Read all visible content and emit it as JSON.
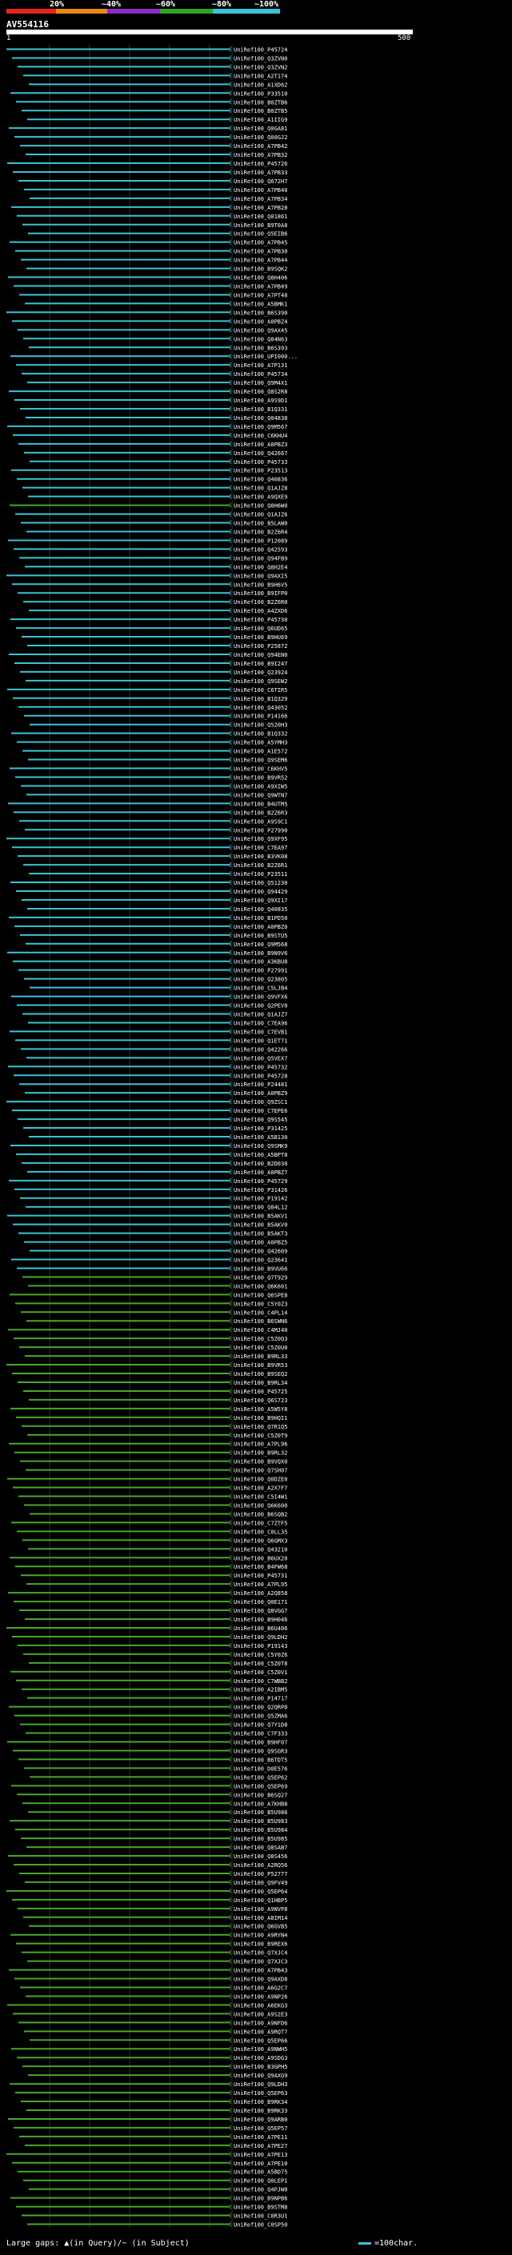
{
  "header": {
    "scale_labels": [
      "20%",
      "~40%",
      "~60%",
      "~80%",
      "~100%"
    ],
    "scale_colors": [
      "#e3271a",
      "#e88a16",
      "#8c2ec3",
      "#2fa22b",
      "#37c4d6"
    ],
    "query_name": "AV554116",
    "query_start": "1",
    "query_end": "500"
  },
  "colors": {
    "cyan": "#37c4d6",
    "green": "#46a82a",
    "background": "#000000",
    "grid": "#2f2f2f"
  },
  "hits": [
    {
      "id": "UniRef100_P45724",
      "color": "cyan"
    },
    {
      "id": "UniRef100_Q3ZVN0",
      "color": "cyan"
    },
    {
      "id": "UniRef100_Q3ZVN2",
      "color": "cyan"
    },
    {
      "id": "UniRef100_A2T174",
      "color": "cyan"
    },
    {
      "id": "UniRef100_A1XD62",
      "color": "cyan"
    },
    {
      "id": "UniRef100_P33510",
      "color": "cyan"
    },
    {
      "id": "UniRef100_B0ZTB6",
      "color": "cyan"
    },
    {
      "id": "UniRef100_B0ZTB5",
      "color": "cyan"
    },
    {
      "id": "UniRef100_A1IIG9",
      "color": "cyan"
    },
    {
      "id": "UniRef100_Q0GA81",
      "color": "cyan"
    },
    {
      "id": "UniRef100_Q00GJ2",
      "color": "cyan"
    },
    {
      "id": "UniRef100_A7PB42",
      "color": "cyan"
    },
    {
      "id": "UniRef100_A7PB32",
      "color": "cyan"
    },
    {
      "id": "UniRef100_P45726",
      "color": "cyan"
    },
    {
      "id": "UniRef100_A7PB33",
      "color": "cyan"
    },
    {
      "id": "UniRef100_Q672H7",
      "color": "cyan"
    },
    {
      "id": "UniRef100_A7PB40",
      "color": "cyan"
    },
    {
      "id": "UniRef100_A7PB34",
      "color": "cyan"
    },
    {
      "id": "UniRef100_A7PB28",
      "color": "cyan"
    },
    {
      "id": "UniRef100_Q01861",
      "color": "cyan"
    },
    {
      "id": "UniRef100_B9T0A8",
      "color": "cyan"
    },
    {
      "id": "UniRef100_Q5EIB6",
      "color": "cyan"
    },
    {
      "id": "UniRef100_A7PB45",
      "color": "cyan"
    },
    {
      "id": "UniRef100_A7PB30",
      "color": "cyan"
    },
    {
      "id": "UniRef100_A7PB44",
      "color": "cyan"
    },
    {
      "id": "UniRef100_B9SQK2",
      "color": "cyan"
    },
    {
      "id": "UniRef100_Q8H406",
      "color": "cyan"
    },
    {
      "id": "UniRef100_A7PB49",
      "color": "cyan"
    },
    {
      "id": "UniRef100_A7PT48",
      "color": "cyan"
    },
    {
      "id": "UniRef100_A5BMK1",
      "color": "cyan"
    },
    {
      "id": "UniRef100_B6S390",
      "color": "cyan"
    },
    {
      "id": "UniRef100_A0PBZ4",
      "color": "cyan"
    },
    {
      "id": "UniRef100_Q9AX45",
      "color": "cyan"
    },
    {
      "id": "UniRef100_Q84N63",
      "color": "cyan"
    },
    {
      "id": "UniRef100_B6S393",
      "color": "cyan"
    },
    {
      "id": "UniRef100_UPI000...",
      "color": "cyan"
    },
    {
      "id": "UniRef100_A7P131",
      "color": "cyan"
    },
    {
      "id": "UniRef100_P45734",
      "color": "cyan"
    },
    {
      "id": "UniRef100_Q9M4X1",
      "color": "cyan"
    },
    {
      "id": "UniRef100_Q8S2R8",
      "color": "cyan"
    },
    {
      "id": "UniRef100_A9S9D1",
      "color": "cyan"
    },
    {
      "id": "UniRef100_B1Q331",
      "color": "cyan"
    },
    {
      "id": "UniRef100_Q04838",
      "color": "cyan"
    },
    {
      "id": "UniRef100_Q9M567",
      "color": "cyan"
    },
    {
      "id": "UniRef100_C6KHU4",
      "color": "cyan"
    },
    {
      "id": "UniRef100_A0PBZ3",
      "color": "cyan"
    },
    {
      "id": "UniRef100_Q42667",
      "color": "cyan"
    },
    {
      "id": "UniRef100_P45733",
      "color": "cyan"
    },
    {
      "id": "UniRef100_P23513",
      "color": "cyan"
    },
    {
      "id": "UniRef100_Q40836",
      "color": "cyan"
    },
    {
      "id": "UniRef100_Q1AJZ8",
      "color": "cyan"
    },
    {
      "id": "UniRef100_A9QXE9",
      "color": "cyan"
    },
    {
      "id": "UniRef100_Q8H6W0",
      "color": "green"
    },
    {
      "id": "UniRef100_Q1AJZ6",
      "color": "cyan"
    },
    {
      "id": "UniRef100_B5LAW0",
      "color": "cyan"
    },
    {
      "id": "UniRef100_B2Z6R4",
      "color": "cyan"
    },
    {
      "id": "UniRef100_P12089",
      "color": "cyan"
    },
    {
      "id": "UniRef100_Q42593",
      "color": "cyan"
    },
    {
      "id": "UniRef100_Q94FB9",
      "color": "cyan"
    },
    {
      "id": "UniRef100_Q8H2E4",
      "color": "cyan"
    },
    {
      "id": "UniRef100_Q9AXI5",
      "color": "cyan"
    },
    {
      "id": "UniRef100_B9H6V5",
      "color": "cyan"
    },
    {
      "id": "UniRef100_B9IFP0",
      "color": "cyan"
    },
    {
      "id": "UniRef100_B2Z6R0",
      "color": "cyan"
    },
    {
      "id": "UniRef100_A4ZXD6",
      "color": "cyan"
    },
    {
      "id": "UniRef100_P45730",
      "color": "cyan"
    },
    {
      "id": "UniRef100_Q6UD65",
      "color": "cyan"
    },
    {
      "id": "UniRef100_B9HU69",
      "color": "cyan"
    },
    {
      "id": "UniRef100_P25872",
      "color": "cyan"
    },
    {
      "id": "UniRef100_Q94EN0",
      "color": "cyan"
    },
    {
      "id": "UniRef100_B9I247",
      "color": "cyan"
    },
    {
      "id": "UniRef100_Q23924",
      "color": "cyan"
    },
    {
      "id": "UniRef100_Q9SEW2",
      "color": "cyan"
    },
    {
      "id": "UniRef100_C6TIR5",
      "color": "cyan"
    },
    {
      "id": "UniRef100_B1Q329",
      "color": "cyan"
    },
    {
      "id": "UniRef100_Q43052",
      "color": "cyan"
    },
    {
      "id": "UniRef100_P14166",
      "color": "cyan"
    },
    {
      "id": "UniRef100_Q520H3",
      "color": "cyan"
    },
    {
      "id": "UniRef100_B1Q332",
      "color": "cyan"
    },
    {
      "id": "UniRef100_A5YMH3",
      "color": "cyan"
    },
    {
      "id": "UniRef100_A1E572",
      "color": "cyan"
    },
    {
      "id": "UniRef100_Q9SEM6",
      "color": "cyan"
    },
    {
      "id": "UniRef100_C6KHV5",
      "color": "cyan"
    },
    {
      "id": "UniRef100_B9VR52",
      "color": "cyan"
    },
    {
      "id": "UniRef100_A9XIW5",
      "color": "cyan"
    },
    {
      "id": "UniRef100_Q9WTN7",
      "color": "cyan"
    },
    {
      "id": "UniRef100_B4UTM5",
      "color": "cyan"
    },
    {
      "id": "UniRef100_B2Z6R3",
      "color": "cyan"
    },
    {
      "id": "UniRef100_A9S9C1",
      "color": "cyan"
    },
    {
      "id": "UniRef100_P27990",
      "color": "cyan"
    },
    {
      "id": "UniRef100_Q9XF95",
      "color": "cyan"
    },
    {
      "id": "UniRef100_C7EA97",
      "color": "cyan"
    },
    {
      "id": "UniRef100_B3VK08",
      "color": "cyan"
    },
    {
      "id": "UniRef100_B2Z6R1",
      "color": "cyan"
    },
    {
      "id": "UniRef100_P23511",
      "color": "cyan"
    },
    {
      "id": "UniRef100_Q51230",
      "color": "cyan"
    },
    {
      "id": "UniRef100_Q94429",
      "color": "cyan"
    },
    {
      "id": "UniRef100_Q9XI17",
      "color": "cyan"
    },
    {
      "id": "UniRef100_Q40835",
      "color": "cyan"
    },
    {
      "id": "UniRef100_B1PD50",
      "color": "cyan"
    },
    {
      "id": "UniRef100_A0PBZ0",
      "color": "cyan"
    },
    {
      "id": "UniRef100_B9STU5",
      "color": "cyan"
    },
    {
      "id": "UniRef100_Q9M568",
      "color": "cyan"
    },
    {
      "id": "UniRef100_B9N9V6",
      "color": "cyan"
    },
    {
      "id": "UniRef100_A3KBU8",
      "color": "cyan"
    },
    {
      "id": "UniRef100_P27991",
      "color": "cyan"
    },
    {
      "id": "UniRef100_Q23805",
      "color": "cyan"
    },
    {
      "id": "UniRef100_C5LJB4",
      "color": "cyan"
    },
    {
      "id": "UniRef100_Q9VFX6",
      "color": "cyan"
    },
    {
      "id": "UniRef100_Q2PEV0",
      "color": "cyan"
    },
    {
      "id": "UniRef100_Q1AJZ7",
      "color": "cyan"
    },
    {
      "id": "UniRef100_C7EA96",
      "color": "cyan"
    },
    {
      "id": "UniRef100_C7EVB1",
      "color": "cyan"
    },
    {
      "id": "UniRef100_Q1ET71",
      "color": "cyan"
    },
    {
      "id": "UniRef100_Q42266",
      "color": "cyan"
    },
    {
      "id": "UniRef100_Q5VEX7",
      "color": "cyan"
    },
    {
      "id": "UniRef100_P45732",
      "color": "cyan"
    },
    {
      "id": "UniRef100_P45728",
      "color": "cyan"
    },
    {
      "id": "UniRef100_P24481",
      "color": "cyan"
    },
    {
      "id": "UniRef100_A0PBZ9",
      "color": "cyan"
    },
    {
      "id": "UniRef100_Q9ZSC1",
      "color": "cyan"
    },
    {
      "id": "UniRef100_C7EPE6",
      "color": "cyan"
    },
    {
      "id": "UniRef100_Q9S545",
      "color": "cyan"
    },
    {
      "id": "UniRef100_P31425",
      "color": "cyan"
    },
    {
      "id": "UniRef100_A5B130",
      "color": "cyan"
    },
    {
      "id": "UniRef100_Q9SMK9",
      "color": "cyan"
    },
    {
      "id": "UniRef100_A5BPT8",
      "color": "cyan"
    },
    {
      "id": "UniRef100_B2D030",
      "color": "cyan"
    },
    {
      "id": "UniRef100_A0PBZ7",
      "color": "cyan"
    },
    {
      "id": "UniRef100_P45729",
      "color": "cyan"
    },
    {
      "id": "UniRef100_P31426",
      "color": "cyan"
    },
    {
      "id": "UniRef100_P19142",
      "color": "cyan"
    },
    {
      "id": "UniRef100_Q84L12",
      "color": "cyan"
    },
    {
      "id": "UniRef100_B5AKV1",
      "color": "cyan"
    },
    {
      "id": "UniRef100_B5AKV0",
      "color": "cyan"
    },
    {
      "id": "UniRef100_B5AKT3",
      "color": "cyan"
    },
    {
      "id": "UniRef100_A0PBZ5",
      "color": "cyan"
    },
    {
      "id": "UniRef100_Q42609",
      "color": "cyan"
    },
    {
      "id": "UniRef100_Q23641",
      "color": "cyan"
    },
    {
      "id": "UniRef100_B9VU66",
      "color": "cyan"
    },
    {
      "id": "UniRef100_Q7T929",
      "color": "green"
    },
    {
      "id": "UniRef100_Q6K601",
      "color": "green"
    },
    {
      "id": "UniRef100_Q6SPE8",
      "color": "green"
    },
    {
      "id": "UniRef100_C5Y0Z3",
      "color": "green"
    },
    {
      "id": "UniRef100_C4PL14",
      "color": "green"
    },
    {
      "id": "UniRef100_B6SWN6",
      "color": "green"
    },
    {
      "id": "UniRef100_C4MJ40",
      "color": "green"
    },
    {
      "id": "UniRef100_C5Z0Q3",
      "color": "green"
    },
    {
      "id": "UniRef100_C5Z0U0",
      "color": "green"
    },
    {
      "id": "UniRef100_B9RL33",
      "color": "green"
    },
    {
      "id": "UniRef100_B9VR53",
      "color": "green"
    },
    {
      "id": "UniRef100_B9SEQ2",
      "color": "green"
    },
    {
      "id": "UniRef100_B9RL34",
      "color": "green"
    },
    {
      "id": "UniRef100_P45725",
      "color": "green"
    },
    {
      "id": "UniRef100_Q6S723",
      "color": "green"
    },
    {
      "id": "UniRef100_A5W5Y8",
      "color": "green"
    },
    {
      "id": "UniRef100_B9HQI1",
      "color": "green"
    },
    {
      "id": "UniRef100_Q7R1Q5",
      "color": "green"
    },
    {
      "id": "UniRef100_C5Z0T9",
      "color": "green"
    },
    {
      "id": "UniRef100_A7PL96",
      "color": "green"
    },
    {
      "id": "UniRef100_B9RL32",
      "color": "green"
    },
    {
      "id": "UniRef100_B9VQX0",
      "color": "green"
    },
    {
      "id": "UniRef100_Q7SH07",
      "color": "green"
    },
    {
      "id": "UniRef100_Q0DZE0",
      "color": "green"
    },
    {
      "id": "UniRef100_A2X7F7",
      "color": "green"
    },
    {
      "id": "UniRef100_C5I4W1",
      "color": "green"
    },
    {
      "id": "UniRef100_Q6K600",
      "color": "green"
    },
    {
      "id": "UniRef100_B6SQB2",
      "color": "green"
    },
    {
      "id": "UniRef100_C7ZTF5",
      "color": "green"
    },
    {
      "id": "UniRef100_C0LL35",
      "color": "green"
    },
    {
      "id": "UniRef100_Q6GMX3",
      "color": "green"
    },
    {
      "id": "UniRef100_Q43210",
      "color": "green"
    },
    {
      "id": "UniRef100_B6UX20",
      "color": "green"
    },
    {
      "id": "UniRef100_B4FW68",
      "color": "green"
    },
    {
      "id": "UniRef100_P45731",
      "color": "green"
    },
    {
      "id": "UniRef100_A7PL95",
      "color": "green"
    },
    {
      "id": "UniRef100_A2Q858",
      "color": "green"
    },
    {
      "id": "UniRef100_Q0E171",
      "color": "green"
    },
    {
      "id": "UniRef100_Q8VGG7",
      "color": "green"
    },
    {
      "id": "UniRef100_B9H046",
      "color": "green"
    },
    {
      "id": "UniRef100_B6U406",
      "color": "green"
    },
    {
      "id": "UniRef100_Q9LDH2",
      "color": "green"
    },
    {
      "id": "UniRef100_P19143",
      "color": "green"
    },
    {
      "id": "UniRef100_C5Y0Z6",
      "color": "green"
    },
    {
      "id": "UniRef100_C5Z0T8",
      "color": "green"
    },
    {
      "id": "UniRef100_C5Z0V1",
      "color": "green"
    },
    {
      "id": "UniRef100_C7WBB2",
      "color": "green"
    },
    {
      "id": "UniRef100_A2IBM5",
      "color": "green"
    },
    {
      "id": "UniRef100_P14717",
      "color": "green"
    },
    {
      "id": "UniRef100_Q2QRP0",
      "color": "green"
    },
    {
      "id": "UniRef100_Q5ZMA6",
      "color": "green"
    },
    {
      "id": "UniRef100_Q7Y1D8",
      "color": "green"
    },
    {
      "id": "UniRef100_C7F333",
      "color": "green"
    },
    {
      "id": "UniRef100_B9HF07",
      "color": "green"
    },
    {
      "id": "UniRef100_Q9SGR3",
      "color": "green"
    },
    {
      "id": "UniRef100_B6TDT5",
      "color": "green"
    },
    {
      "id": "UniRef100_D0E576",
      "color": "green"
    },
    {
      "id": "UniRef100_Q5EP62",
      "color": "green"
    },
    {
      "id": "UniRef100_Q5EP69",
      "color": "green"
    },
    {
      "id": "UniRef100_B6SQ27",
      "color": "green"
    },
    {
      "id": "UniRef100_A7KHB8",
      "color": "green"
    },
    {
      "id": "UniRef100_B5U986",
      "color": "green"
    },
    {
      "id": "UniRef100_B5U983",
      "color": "green"
    },
    {
      "id": "UniRef100_B5U984",
      "color": "green"
    },
    {
      "id": "UniRef100_B5U985",
      "color": "green"
    },
    {
      "id": "UniRef100_Q8SAB7",
      "color": "green"
    },
    {
      "id": "UniRef100_Q8S456",
      "color": "green"
    },
    {
      "id": "UniRef100_A2RQ56",
      "color": "green"
    },
    {
      "id": "UniRef100_P52777",
      "color": "green"
    },
    {
      "id": "UniRef100_Q9FV49",
      "color": "green"
    },
    {
      "id": "UniRef100_Q5EP64",
      "color": "green"
    },
    {
      "id": "UniRef100_Q1HBP5",
      "color": "green"
    },
    {
      "id": "UniRef100_A9NVP8",
      "color": "green"
    },
    {
      "id": "UniRef100_A8IM14",
      "color": "green"
    },
    {
      "id": "UniRef100_Q6GVB5",
      "color": "green"
    },
    {
      "id": "UniRef100_A9RYN4",
      "color": "green"
    },
    {
      "id": "UniRef100_B9REX6",
      "color": "green"
    },
    {
      "id": "UniRef100_Q7XJC4",
      "color": "green"
    },
    {
      "id": "UniRef100_Q7XJC3",
      "color": "green"
    },
    {
      "id": "UniRef100_A7PB43",
      "color": "green"
    },
    {
      "id": "UniRef100_Q9AXD8",
      "color": "green"
    },
    {
      "id": "UniRef100_A6G2C7",
      "color": "green"
    },
    {
      "id": "UniRef100_A9NP26",
      "color": "green"
    },
    {
      "id": "UniRef100_A6EKG3",
      "color": "green"
    },
    {
      "id": "UniRef100_A9S2E3",
      "color": "green"
    },
    {
      "id": "UniRef100_A9NFD6",
      "color": "green"
    },
    {
      "id": "UniRef100_A9RQT7",
      "color": "green"
    },
    {
      "id": "UniRef100_Q5EP66",
      "color": "green"
    },
    {
      "id": "UniRef100_A9NWH5",
      "color": "green"
    },
    {
      "id": "UniRef100_A9SDG3",
      "color": "green"
    },
    {
      "id": "UniRef100_B3GPH5",
      "color": "green"
    },
    {
      "id": "UniRef100_Q9AXG9",
      "color": "green"
    },
    {
      "id": "UniRef100_Q9LDH3",
      "color": "green"
    },
    {
      "id": "UniRef100_Q5EP63",
      "color": "green"
    },
    {
      "id": "UniRef100_B9RK34",
      "color": "green"
    },
    {
      "id": "UniRef100_B9RK33",
      "color": "green"
    },
    {
      "id": "UniRef100_Q9ARB0",
      "color": "green"
    },
    {
      "id": "UniRef100_Q5EP57",
      "color": "green"
    },
    {
      "id": "UniRef100_A7PE11",
      "color": "green"
    },
    {
      "id": "UniRef100_A7PE27",
      "color": "green"
    },
    {
      "id": "UniRef100_A7PE13",
      "color": "green"
    },
    {
      "id": "UniRef100_A7PE10",
      "color": "green"
    },
    {
      "id": "UniRef100_A5BD75",
      "color": "green"
    },
    {
      "id": "UniRef100_Q0LEP1",
      "color": "green"
    },
    {
      "id": "UniRef100_Q4PJW0",
      "color": "green"
    },
    {
      "id": "UniRef100_B9NPB6",
      "color": "green"
    },
    {
      "id": "UniRef100_B9STM8",
      "color": "green"
    },
    {
      "id": "UniRef100_C0R3U1",
      "color": "green"
    },
    {
      "id": "UniRef100_C0SP50",
      "color": "green"
    }
  ],
  "footer": {
    "legend_left": "Large gaps: ▲(in Query)/~ (in Subject)",
    "legend_right": "=100char."
  }
}
